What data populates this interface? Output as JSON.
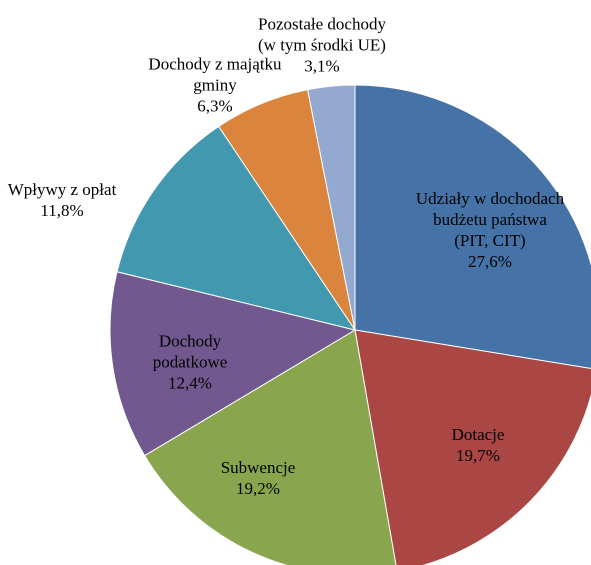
{
  "chart_data": {
    "type": "pie",
    "categories": [
      "Udziały w dochodach budżetu państwa (PIT, CIT)",
      "Dotacje",
      "Subwencje",
      "Dochody podatkowe",
      "Wpływy z opłat",
      "Dochody z majątku gminy",
      "Pozostałe dochody (w tym środki UE)"
    ],
    "values": [
      27.6,
      19.7,
      19.2,
      12.4,
      11.8,
      6.3,
      3.1
    ],
    "value_labels": [
      "27,6%",
      "19,7%",
      "19,2%",
      "12,4%",
      "11,8%",
      "6,3%",
      "3,1%"
    ],
    "colors": [
      "#4572a7",
      "#aa4643",
      "#89a54e",
      "#71588f",
      "#4198af",
      "#db843d",
      "#93a9cf"
    ]
  }
}
